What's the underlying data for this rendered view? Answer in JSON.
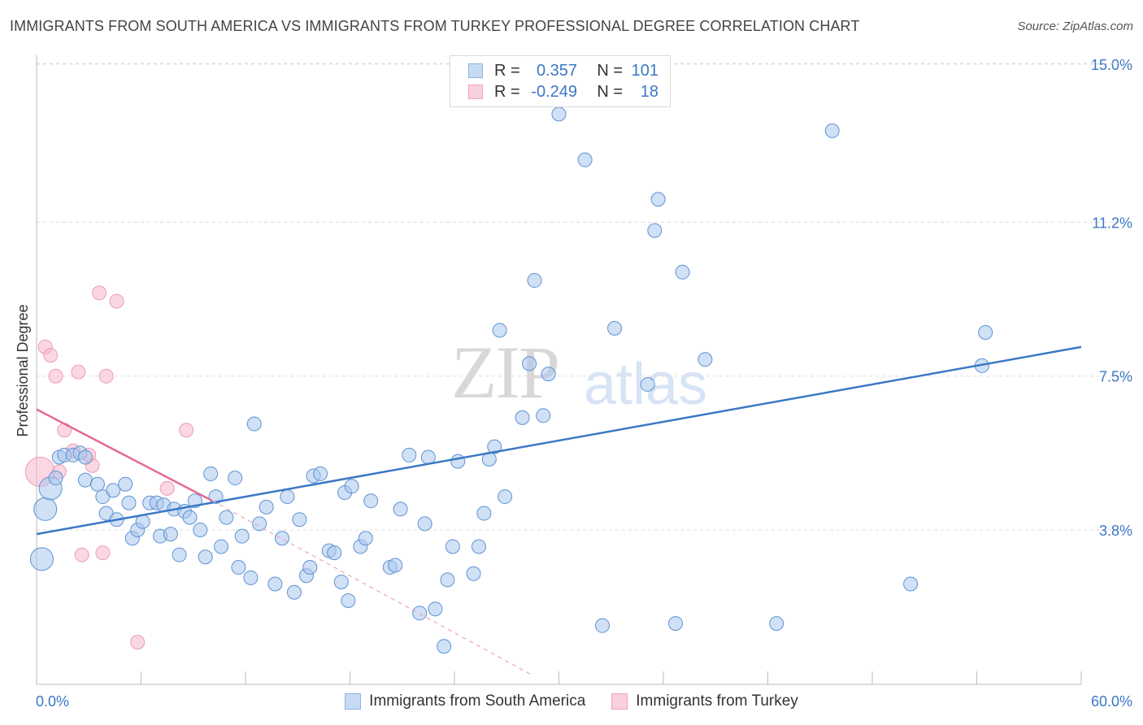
{
  "title": "IMMIGRANTS FROM SOUTH AMERICA VS IMMIGRANTS FROM TURKEY PROFESSIONAL DEGREE CORRELATION CHART",
  "source": "Source: ZipAtlas.com",
  "watermark": {
    "zip": "ZIP",
    "atlas": "atlas"
  },
  "colors": {
    "blue": "#3b78c5",
    "blue_fill": "#a9c7ec",
    "pink": "#e36b96",
    "pink_fill": "#f5b7cb",
    "grid": "#dddddd"
  },
  "legend": {
    "rows": [
      {
        "r_label": "R =",
        "r_value": "0.357",
        "n_label": "N =",
        "n_value": "101"
      },
      {
        "r_label": "R =",
        "r_value": "-0.249",
        "n_label": "N =",
        "n_value": "18"
      }
    ]
  },
  "chart_data": {
    "type": "scatter",
    "title": "IMMIGRANTS FROM SOUTH AMERICA VS IMMIGRANTS FROM TURKEY PROFESSIONAL DEGREE CORRELATION CHART",
    "xlabel": "",
    "ylabel": "Professional Degree",
    "xlim": [
      0,
      60
    ],
    "ylim": [
      0,
      15.5
    ],
    "x_tick_labels": [
      "0.0%",
      "60.0%"
    ],
    "y_ticks": [
      3.8,
      7.5,
      11.2,
      15.0
    ],
    "y_tick_labels": [
      "3.8%",
      "7.5%",
      "11.2%",
      "15.0%"
    ],
    "grid": true,
    "series": [
      {
        "name": "Immigrants from South America",
        "color": "#3b78c5",
        "trend": {
          "x": [
            0,
            60
          ],
          "y": [
            3.7,
            8.2
          ]
        },
        "points": [
          [
            0.3,
            3.1
          ],
          [
            0.5,
            4.3
          ],
          [
            0.8,
            4.8
          ],
          [
            1.1,
            5.05
          ],
          [
            1.3,
            5.55
          ],
          [
            1.6,
            5.6
          ],
          [
            2.1,
            5.6
          ],
          [
            2.5,
            5.65
          ],
          [
            2.8,
            5.55
          ],
          [
            2.8,
            5.0
          ],
          [
            3.5,
            4.9
          ],
          [
            3.8,
            4.6
          ],
          [
            4.0,
            4.2
          ],
          [
            4.4,
            4.75
          ],
          [
            4.6,
            4.05
          ],
          [
            5.1,
            4.9
          ],
          [
            5.3,
            4.45
          ],
          [
            5.5,
            3.6
          ],
          [
            5.8,
            3.8
          ],
          [
            6.1,
            4.0
          ],
          [
            6.5,
            4.45
          ],
          [
            6.9,
            4.45
          ],
          [
            7.1,
            3.65
          ],
          [
            7.3,
            4.4
          ],
          [
            7.7,
            3.7
          ],
          [
            7.9,
            4.3
          ],
          [
            8.2,
            3.2
          ],
          [
            8.5,
            4.25
          ],
          [
            8.8,
            4.1
          ],
          [
            9.1,
            4.5
          ],
          [
            9.4,
            3.8
          ],
          [
            9.7,
            3.15
          ],
          [
            10.0,
            5.15
          ],
          [
            10.3,
            4.6
          ],
          [
            10.6,
            3.4
          ],
          [
            10.9,
            4.1
          ],
          [
            11.4,
            5.05
          ],
          [
            11.6,
            2.9
          ],
          [
            11.8,
            3.65
          ],
          [
            12.3,
            2.65
          ],
          [
            12.5,
            6.35
          ],
          [
            12.8,
            3.95
          ],
          [
            13.2,
            4.35
          ],
          [
            13.7,
            2.5
          ],
          [
            14.1,
            3.6
          ],
          [
            14.4,
            4.6
          ],
          [
            14.8,
            2.3
          ],
          [
            15.1,
            4.05
          ],
          [
            15.5,
            2.7
          ],
          [
            15.7,
            2.9
          ],
          [
            15.9,
            5.1
          ],
          [
            16.3,
            5.15
          ],
          [
            16.8,
            3.3
          ],
          [
            17.1,
            3.25
          ],
          [
            17.5,
            2.55
          ],
          [
            17.9,
            2.1
          ],
          [
            17.7,
            4.7
          ],
          [
            18.1,
            4.85
          ],
          [
            18.6,
            3.4
          ],
          [
            18.9,
            3.6
          ],
          [
            19.2,
            4.5
          ],
          [
            20.3,
            2.9
          ],
          [
            20.6,
            2.95
          ],
          [
            20.9,
            4.3
          ],
          [
            21.4,
            5.6
          ],
          [
            22.0,
            1.8
          ],
          [
            22.3,
            3.95
          ],
          [
            22.5,
            5.55
          ],
          [
            22.9,
            1.9
          ],
          [
            23.4,
            1.0
          ],
          [
            23.6,
            2.6
          ],
          [
            23.9,
            3.4
          ],
          [
            24.2,
            5.45
          ],
          [
            25.1,
            2.75
          ],
          [
            25.4,
            3.4
          ],
          [
            25.7,
            4.2
          ],
          [
            26.0,
            5.5
          ],
          [
            26.3,
            5.8
          ],
          [
            26.6,
            8.6
          ],
          [
            26.9,
            4.6
          ],
          [
            27.9,
            6.5
          ],
          [
            28.3,
            7.8
          ],
          [
            28.6,
            9.8
          ],
          [
            29.1,
            6.55
          ],
          [
            29.4,
            7.55
          ],
          [
            30.0,
            13.8
          ],
          [
            31.5,
            12.7
          ],
          [
            32.5,
            1.5
          ],
          [
            33.2,
            8.65
          ],
          [
            35.1,
            7.3
          ],
          [
            35.5,
            11.0
          ],
          [
            35.7,
            11.75
          ],
          [
            36.7,
            1.55
          ],
          [
            37.1,
            10.0
          ],
          [
            38.4,
            7.9
          ],
          [
            42.5,
            1.55
          ],
          [
            45.7,
            13.4
          ],
          [
            50.2,
            2.5
          ],
          [
            54.3,
            7.75
          ],
          [
            54.5,
            8.55
          ]
        ],
        "sizes": {
          "large": [
            [
              0.3,
              3.1
            ],
            [
              0.5,
              4.3
            ],
            [
              0.8,
              4.8
            ]
          ]
        }
      },
      {
        "name": "Immigrants from Turkey",
        "color": "#e36b96",
        "trend": {
          "x": [
            0,
            10.1
          ],
          "y": [
            6.7,
            4.5
          ]
        },
        "trend_dashed": {
          "x": [
            10.1,
            28.5
          ],
          "y": [
            4.5,
            0.3
          ]
        },
        "points": [
          [
            0.2,
            5.2
          ],
          [
            0.5,
            8.2
          ],
          [
            0.8,
            8.0
          ],
          [
            1.1,
            7.5
          ],
          [
            1.3,
            5.2
          ],
          [
            1.6,
            6.2
          ],
          [
            2.1,
            5.7
          ],
          [
            2.4,
            7.6
          ],
          [
            2.6,
            3.2
          ],
          [
            3.0,
            5.6
          ],
          [
            3.2,
            5.35
          ],
          [
            3.6,
            9.5
          ],
          [
            3.8,
            3.25
          ],
          [
            4.0,
            7.5
          ],
          [
            4.6,
            9.3
          ],
          [
            5.8,
            1.1
          ],
          [
            7.5,
            4.8
          ],
          [
            8.6,
            6.2
          ]
        ]
      }
    ]
  }
}
